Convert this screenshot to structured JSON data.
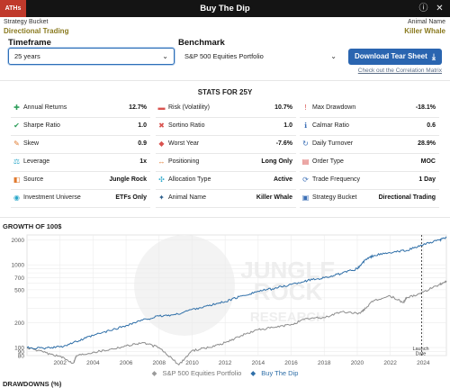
{
  "window": {
    "brand": "ATHs",
    "title": "Buy The Dip"
  },
  "meta": {
    "left_caption": "Strategy Bucket",
    "left_value": "Directional Trading",
    "right_caption": "Animal Name",
    "right_value": "Killer Whale"
  },
  "controls": {
    "timeframe_label": "Timeframe",
    "timeframe_value": "25 years",
    "benchmark_label": "Benchmark",
    "benchmark_value": "S&P 500 Equities Portfolio",
    "download_label": "Download Tear Sheet",
    "correlation_link": "Check out the Correlation Matrix"
  },
  "stats": {
    "title": "STATS FOR 25Y",
    "rows": [
      [
        {
          "name": "Annual Returns",
          "value": "12.7%",
          "icon": "plus-icon",
          "color": "#2e9e5b",
          "glyph": "✚"
        },
        {
          "name": "Risk (Volatility)",
          "value": "10.7%",
          "icon": "minus-icon",
          "color": "#d9534f",
          "glyph": "▬"
        },
        {
          "name": "Max Drawdown",
          "value": "-18.1%",
          "icon": "exclamation-icon",
          "color": "#d9534f",
          "glyph": "!"
        }
      ],
      [
        {
          "name": "Sharpe Ratio",
          "value": "1.0",
          "icon": "check-circle-icon",
          "color": "#2e9e5b",
          "glyph": "✔"
        },
        {
          "name": "Sortino Ratio",
          "value": "1.0",
          "icon": "x-circle-icon",
          "color": "#d9534f",
          "glyph": "✖"
        },
        {
          "name": "Calmar Ratio",
          "value": "0.6",
          "icon": "info-circle-icon",
          "color": "#3b6fb6",
          "glyph": "ℹ"
        }
      ],
      [
        {
          "name": "Skew",
          "value": "0.9",
          "icon": "pencil-icon",
          "color": "#e07a2f",
          "glyph": "✎"
        },
        {
          "name": "Worst Year",
          "value": "-7.6%",
          "icon": "triangle-icon",
          "color": "#d9534f",
          "glyph": "◆"
        },
        {
          "name": "Daily Turnover",
          "value": "28.9%",
          "icon": "refresh-icon",
          "color": "#3b6fb6",
          "glyph": "↻"
        }
      ],
      [
        {
          "name": "Leverage",
          "value": "1x",
          "icon": "scale-icon",
          "color": "#2aa7c9",
          "glyph": "⚖"
        },
        {
          "name": "Positioning",
          "value": "Long Only",
          "icon": "arrows-icon",
          "color": "#e07a2f",
          "glyph": "↔"
        },
        {
          "name": "Order Type",
          "value": "MOC",
          "icon": "receipt-icon",
          "color": "#d9534f",
          "glyph": "▤"
        }
      ],
      [
        {
          "name": "Source",
          "value": "Jungle Rock",
          "icon": "source-icon",
          "color": "#e07a2f",
          "glyph": "◧"
        },
        {
          "name": "Allocation Type",
          "value": "Active",
          "icon": "allocation-icon",
          "color": "#2aa7c9",
          "glyph": "✣"
        },
        {
          "name": "Trade Frequency",
          "value": "1 Day",
          "icon": "clock-icon",
          "color": "#3b6fb6",
          "glyph": "⟳"
        }
      ],
      [
        {
          "name": "Investment Universe",
          "value": "ETFs Only",
          "icon": "globe-icon",
          "color": "#2aa7c9",
          "glyph": "◉"
        },
        {
          "name": "Animal Name",
          "value": "Killer Whale",
          "icon": "paw-icon",
          "color": "#2a5c8a",
          "glyph": "✦"
        },
        {
          "name": "Strategy Bucket",
          "value": "Directional Trading",
          "icon": "bucket-icon",
          "color": "#3b6fb6",
          "glyph": "▣"
        }
      ]
    ]
  },
  "growth": {
    "title": "GROWTH OF 100$",
    "watermark_lines": [
      "JUNGLE",
      "ROCK",
      "RESEARCH"
    ],
    "launch_label_1": "Launch",
    "launch_label_2": "Date"
  },
  "legend": {
    "benchmark_label": "S&P 500 Equities Portfolio",
    "strategy_label": "Buy The Dip"
  },
  "drawdowns": {
    "title": "DRAWDOWNS (%)"
  },
  "chart_data": {
    "type": "line",
    "title": "GROWTH OF 100$",
    "y_scale": "log",
    "ylim": [
      80,
      2300
    ],
    "xlim": [
      2000,
      2025.4
    ],
    "y_ticks": [
      70,
      80,
      90,
      100,
      200,
      300,
      400,
      500,
      600,
      700,
      800,
      900,
      1000,
      2000
    ],
    "y_tick_labels": [
      "70",
      "80",
      "90",
      "100",
      "200",
      "",
      "",
      "500",
      "",
      "700",
      "",
      "",
      "1000",
      "2000"
    ],
    "x_ticks": [
      2002,
      2004,
      2006,
      2008,
      2010,
      2012,
      2014,
      2016,
      2018,
      2020,
      2022,
      2024
    ],
    "launch_date_x": 2023.9,
    "grid": true,
    "legend_position": "bottom",
    "series": [
      {
        "name": "Buy The Dip",
        "color": "#2f6fa8",
        "x": [
          2000,
          2001,
          2002,
          2003,
          2004,
          2005,
          2006,
          2007,
          2008,
          2009,
          2010,
          2011,
          2012,
          2013,
          2014,
          2015,
          2016,
          2017,
          2018,
          2019,
          2020,
          2020.5,
          2021,
          2022,
          2023,
          2024,
          2025,
          2025.4
        ],
        "y": [
          100,
          98,
          102,
          118,
          140,
          160,
          185,
          215,
          240,
          250,
          290,
          320,
          360,
          420,
          480,
          520,
          580,
          650,
          700,
          780,
          900,
          1150,
          1300,
          1400,
          1500,
          1750,
          2000,
          2150
        ]
      },
      {
        "name": "S&P 500 Equities Portfolio",
        "color": "#8c8c8c",
        "x": [
          2000,
          2001,
          2002,
          2002.8,
          2003,
          2004,
          2005,
          2006,
          2007,
          2008,
          2009.2,
          2010,
          2011,
          2012,
          2013,
          2014,
          2015,
          2016,
          2017,
          2018,
          2019,
          2020.2,
          2020.5,
          2021,
          2022,
          2022.8,
          2023,
          2024,
          2025,
          2025.4
        ],
        "y": [
          100,
          88,
          78,
          65,
          80,
          88,
          95,
          105,
          115,
          100,
          62,
          92,
          100,
          115,
          140,
          165,
          175,
          190,
          225,
          230,
          270,
          260,
          300,
          370,
          420,
          350,
          400,
          470,
          580,
          640
        ]
      }
    ]
  }
}
